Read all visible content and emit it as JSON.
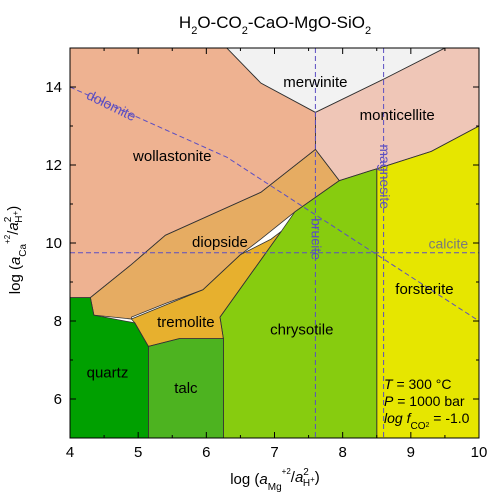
{
  "chart_data": {
    "type": "area",
    "title": {
      "main": "H",
      "sub1": "2",
      "mid1": "O-CO",
      "sub2": "2",
      "mid2": "-CaO-MgO-SiO",
      "sub3": "2"
    },
    "xlabel": {
      "pre": "log (",
      "a": "a",
      "sub_mg": "Mg",
      "sup_mg": "+2",
      "slash": "/",
      "a2": "a",
      "sup2": "2",
      "sub_h": "H",
      "sup_h": "+",
      "post": ")"
    },
    "ylabel": {
      "pre": "log (",
      "a": "a",
      "sub_ca": "Ca",
      "sup_ca": "+2",
      "slash": "/",
      "a2": "a",
      "sup2": "2",
      "sub_h": "H",
      "sup_h": "+",
      "post": ")"
    },
    "xlim": [
      4,
      10
    ],
    "ylim": [
      5,
      15
    ],
    "xticks": [
      4,
      5,
      6,
      7,
      8,
      9,
      10
    ],
    "yticks": [
      6,
      8,
      10,
      12,
      14
    ],
    "fields": [
      {
        "name": "merwinite",
        "color": "#f2f2f2",
        "label_at": [
          7.6,
          14.1
        ],
        "polygon": [
          [
            6.3,
            15
          ],
          [
            9.5,
            15
          ],
          [
            8.6,
            14.2
          ],
          [
            7.6,
            13.35
          ],
          [
            6.8,
            14.1
          ]
        ]
      },
      {
        "name": "wollastonite",
        "color": "#eeb291",
        "label_at": [
          5.5,
          12.2
        ],
        "polygon": [
          [
            4,
            15
          ],
          [
            6.3,
            15
          ],
          [
            6.8,
            14.1
          ],
          [
            7.6,
            13.35
          ],
          [
            7.6,
            12.4
          ],
          [
            6.8,
            11.3
          ],
          [
            5.4,
            10.2
          ],
          [
            4.9,
            9.45
          ],
          [
            4.3,
            8.6
          ],
          [
            4,
            8.6
          ]
        ]
      },
      {
        "name": "monticellite",
        "color": "#efc6b7",
        "label_at": [
          8.8,
          13.25
        ],
        "polygon": [
          [
            7.6,
            13.35
          ],
          [
            8.6,
            14.2
          ],
          [
            9.5,
            15
          ],
          [
            10,
            15
          ],
          [
            10,
            13.0
          ],
          [
            9.3,
            12.35
          ],
          [
            8.4,
            11.85
          ],
          [
            7.95,
            11.6
          ],
          [
            7.6,
            12.4
          ]
        ]
      },
      {
        "name": "diopside",
        "color": "#e6ac62",
        "label_at": [
          6.2,
          10.0
        ],
        "polygon": [
          [
            4.3,
            8.6
          ],
          [
            4.9,
            9.45
          ],
          [
            5.4,
            10.2
          ],
          [
            6.8,
            11.3
          ],
          [
            7.6,
            12.4
          ],
          [
            7.95,
            11.6
          ],
          [
            7.3,
            10.8
          ],
          [
            6.8,
            10.1
          ],
          [
            6.5,
            9.7
          ],
          [
            5.95,
            8.8
          ],
          [
            5.4,
            8.45
          ],
          [
            4.9,
            8.1
          ],
          [
            4.9,
            8.05
          ],
          [
            4.35,
            8.15
          ]
        ]
      },
      {
        "name": "tremolite",
        "color": "#e7b02e",
        "label_at": [
          5.7,
          7.95
        ],
        "polygon": [
          [
            4.9,
            8.05
          ],
          [
            5.95,
            8.8
          ],
          [
            6.5,
            9.7
          ],
          [
            6.95,
            10.1
          ],
          [
            7.1,
            10.3
          ],
          [
            6.2,
            8.1
          ],
          [
            6.25,
            7.55
          ],
          [
            5.6,
            7.55
          ],
          [
            5.15,
            7.35
          ],
          [
            4.95,
            7.95
          ]
        ]
      },
      {
        "name": "chrysotile",
        "color": "#87cc0f",
        "label_at": [
          7.4,
          7.75
        ],
        "polygon": [
          [
            6.2,
            8.1
          ],
          [
            7.1,
            10.3
          ],
          [
            7.3,
            10.8
          ],
          [
            7.95,
            11.6
          ],
          [
            8.4,
            11.85
          ],
          [
            8.5,
            11.9
          ],
          [
            8.5,
            5.0
          ],
          [
            6.25,
            5.0
          ],
          [
            6.25,
            7.55
          ]
        ]
      },
      {
        "name": "forsterite",
        "color": "#e6e600",
        "label_at": [
          9.2,
          8.8
        ],
        "polygon": [
          [
            8.5,
            11.9
          ],
          [
            9.3,
            12.35
          ],
          [
            10,
            13.0
          ],
          [
            10,
            5.0
          ],
          [
            8.5,
            5.0
          ]
        ]
      },
      {
        "name": "talc",
        "color": "#4db320",
        "label_at": [
          5.7,
          6.25
        ],
        "polygon": [
          [
            5.15,
            7.35
          ],
          [
            5.6,
            7.55
          ],
          [
            6.25,
            7.55
          ],
          [
            6.25,
            5.0
          ],
          [
            5.15,
            5.0
          ]
        ]
      },
      {
        "name": "quartz",
        "color": "#00a000",
        "label_at": [
          4.55,
          6.65
        ],
        "polygon": [
          [
            4,
            8.6
          ],
          [
            4.3,
            8.6
          ],
          [
            4.35,
            8.15
          ],
          [
            4.95,
            7.95
          ],
          [
            5.15,
            7.35
          ],
          [
            5.15,
            5.0
          ],
          [
            4,
            5.0
          ]
        ]
      }
    ],
    "dashed_lines": [
      {
        "name": "dolomite",
        "color": "#5b4ec2",
        "points": [
          [
            4,
            14.0
          ],
          [
            6.3,
            12.2
          ],
          [
            10,
            8.0
          ]
        ],
        "label_at": [
          4.6,
          13.5
        ],
        "label_rotate": 26,
        "label_class": "line-label"
      },
      {
        "name": "magnesite",
        "color": "#5b4ec2",
        "points": [
          [
            8.6,
            15
          ],
          [
            8.6,
            5
          ]
        ],
        "label_at": [
          8.6,
          11.7
        ],
        "label_rotate": 90,
        "label_class": "line-label"
      },
      {
        "name": "brucite",
        "color": "#5b4ec2",
        "points": [
          [
            7.6,
            15
          ],
          [
            7.6,
            5
          ]
        ],
        "label_at": [
          7.6,
          10.1
        ],
        "label_rotate": 90,
        "label_class": "line-label"
      },
      {
        "name": "calcite",
        "color": "#5b4ec2",
        "points": [
          [
            4,
            9.75
          ],
          [
            10,
            9.75
          ]
        ],
        "label_at": [
          9.55,
          9.95
        ],
        "label_rotate": 0,
        "label_class": "line-label-grey"
      }
    ],
    "conditions": [
      {
        "var": "T",
        "rest": " = 300 °C"
      },
      {
        "var": "P",
        "rest": " = 1000 bar"
      },
      {
        "var": "log f",
        "sub": "CO",
        "subsub": "2",
        "rest": " = -1.0"
      }
    ],
    "grid": false,
    "legend": "none"
  }
}
